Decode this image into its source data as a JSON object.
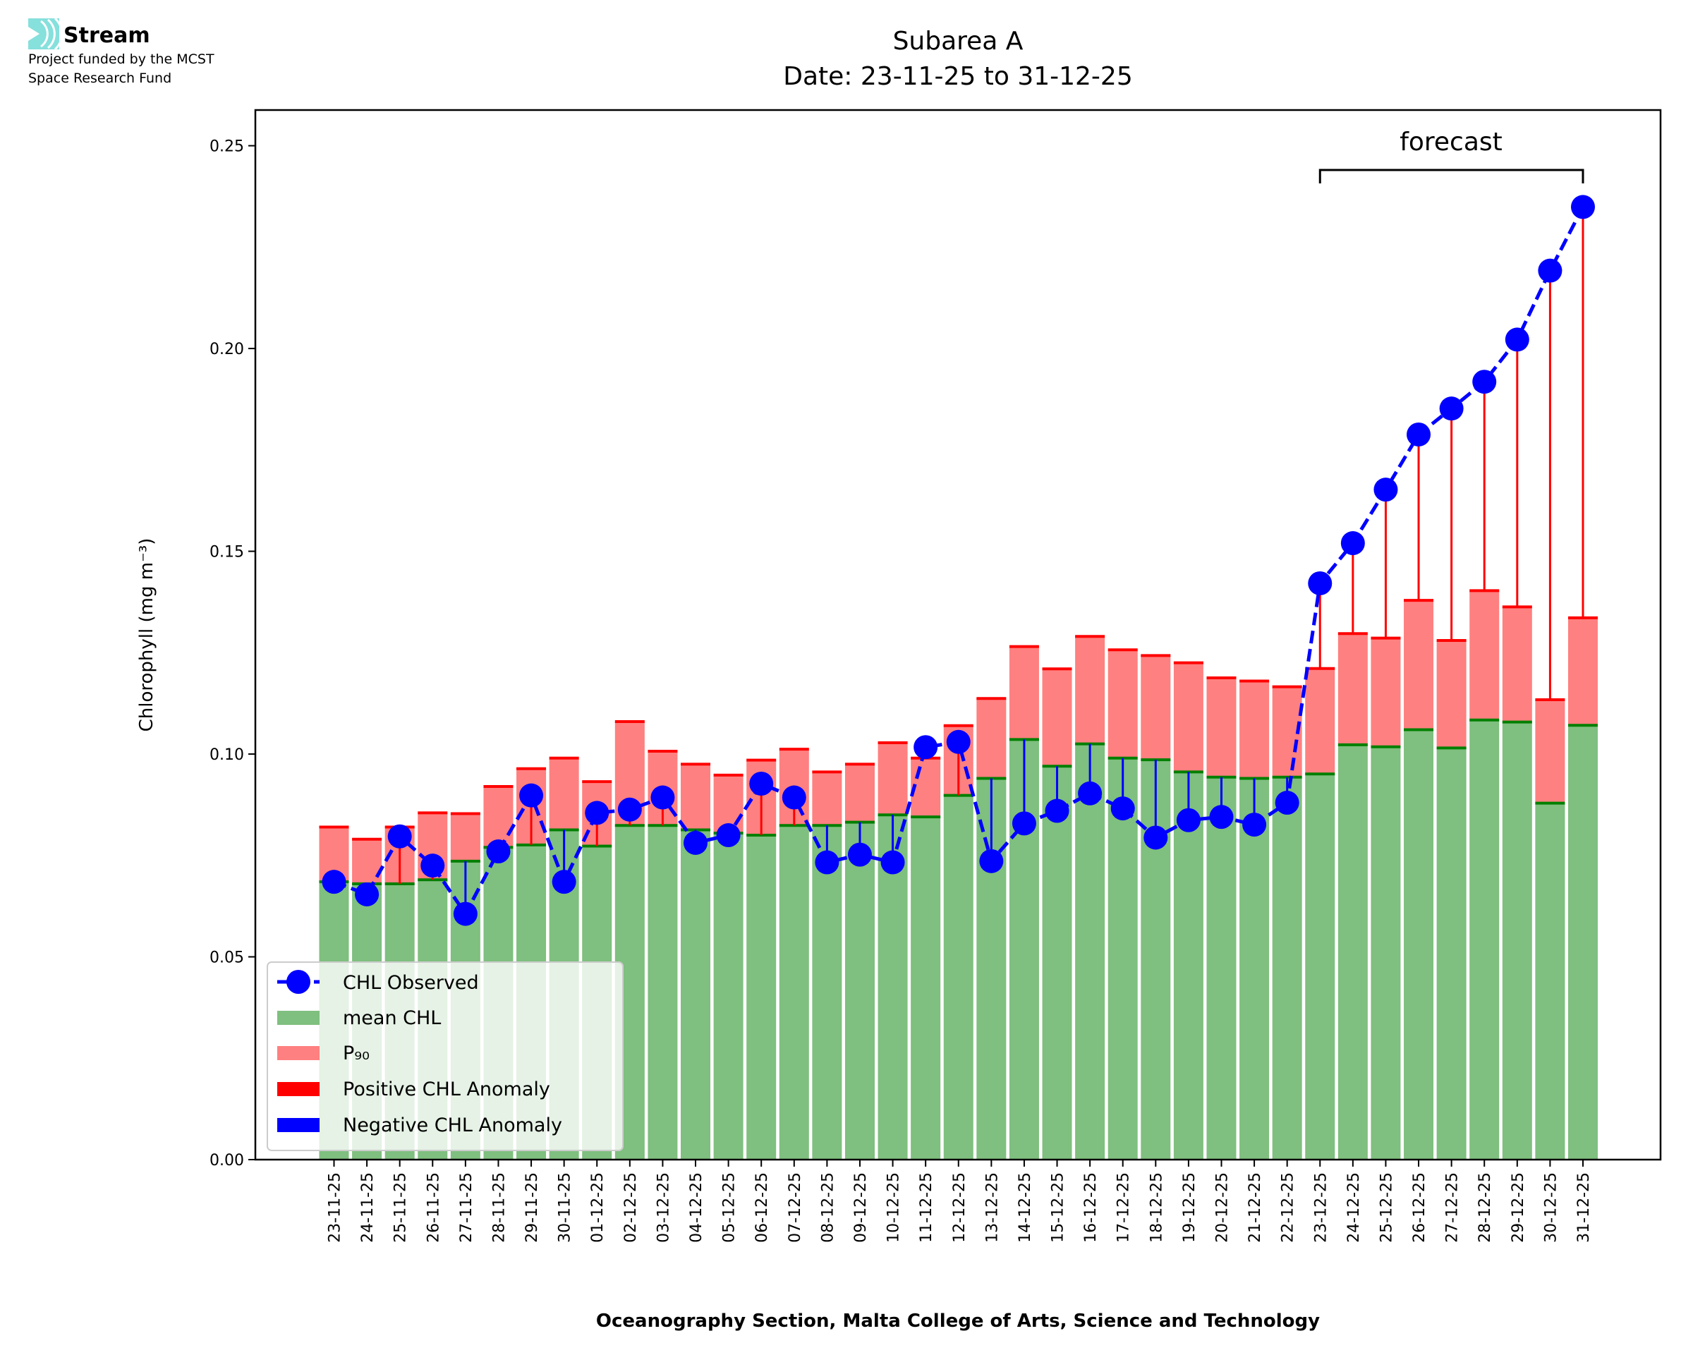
{
  "logo": {
    "name": "Stream",
    "line1": "Project funded by the MCST",
    "line2": "Space Research Fund"
  },
  "chart_data": {
    "type": "bar",
    "title": "Subarea A",
    "subtitle": "Date: 23-11-25 to 31-12-25",
    "xlabel": "Oceanography Section, Malta College of Arts, Science and Technology",
    "ylabel": "Chlorophyll (mg m⁻³)",
    "ylim": [
      0,
      0.2588
    ],
    "yticks": [
      "0.00",
      "0.05",
      "0.10",
      "0.15",
      "0.20",
      "0.25"
    ],
    "annotation": "forecast",
    "forecast_range": [
      "23-12-25",
      "31-12-25"
    ],
    "categories": [
      "23-11-25",
      "24-11-25",
      "25-11-25",
      "26-11-25",
      "27-11-25",
      "28-11-25",
      "29-11-25",
      "30-11-25",
      "01-12-25",
      "02-12-25",
      "03-12-25",
      "04-12-25",
      "05-12-25",
      "06-12-25",
      "07-12-25",
      "08-12-25",
      "09-12-25",
      "10-12-25",
      "11-12-25",
      "12-12-25",
      "13-12-25",
      "14-12-25",
      "15-12-25",
      "16-12-25",
      "17-12-25",
      "18-12-25",
      "19-12-25",
      "20-12-25",
      "21-12-25",
      "22-12-25",
      "23-12-25",
      "24-12-25",
      "25-12-25",
      "26-12-25",
      "27-12-25",
      "28-12-25",
      "29-12-25",
      "30-12-25",
      "31-12-25"
    ],
    "series": [
      {
        "name": "CHL Observed",
        "color": "#0000ff",
        "values": [
          0.0685,
          0.0654,
          0.0797,
          0.0725,
          0.0606,
          0.076,
          0.0898,
          0.0685,
          0.0855,
          0.0863,
          0.0893,
          0.0781,
          0.08,
          0.0927,
          0.0893,
          0.0733,
          0.0752,
          0.0733,
          0.1017,
          0.103,
          0.0736,
          0.0829,
          0.086,
          0.0903,
          0.0866,
          0.0794,
          0.0837,
          0.0845,
          0.0826,
          0.088,
          0.1421,
          0.152,
          0.1652,
          0.1788,
          0.1852,
          0.1918,
          0.2022,
          0.2192,
          0.2349
        ]
      },
      {
        "name": "mean CHL",
        "color": "#7fbf7f",
        "values": [
          0.0685,
          0.068,
          0.068,
          0.069,
          0.0736,
          0.077,
          0.0776,
          0.0813,
          0.0773,
          0.0824,
          0.0824,
          0.0813,
          0.0805,
          0.08,
          0.0824,
          0.0824,
          0.0832,
          0.085,
          0.0845,
          0.0898,
          0.094,
          0.1036,
          0.097,
          0.1025,
          0.099,
          0.0986,
          0.0956,
          0.0943,
          0.094,
          0.0943,
          0.0951,
          0.1023,
          0.1018,
          0.106,
          0.1015,
          0.1084,
          0.1079,
          0.0879,
          0.1071
        ]
      },
      {
        "name": "P₉₀",
        "color": "#ff8080",
        "values": [
          0.082,
          0.079,
          0.082,
          0.0855,
          0.0853,
          0.092,
          0.0964,
          0.099,
          0.0932,
          0.108,
          0.1007,
          0.0975,
          0.0948,
          0.0985,
          0.1012,
          0.0956,
          0.0975,
          0.1028,
          0.099,
          0.107,
          0.1137,
          0.1265,
          0.121,
          0.129,
          0.1257,
          0.1243,
          0.1225,
          0.1188,
          0.118,
          0.1166,
          0.1211,
          0.1297,
          0.1286,
          0.1379,
          0.128,
          0.1403,
          0.1363,
          0.1134,
          0.1336
        ]
      }
    ],
    "legend": [
      "CHL Observed",
      "mean CHL",
      "P₉₀",
      "Positive CHL Anomaly",
      "Negative CHL Anomaly"
    ],
    "legend_position": "lower-left",
    "anomaly_colors": {
      "positive": "#ff0000",
      "negative": "#0000ff"
    }
  }
}
